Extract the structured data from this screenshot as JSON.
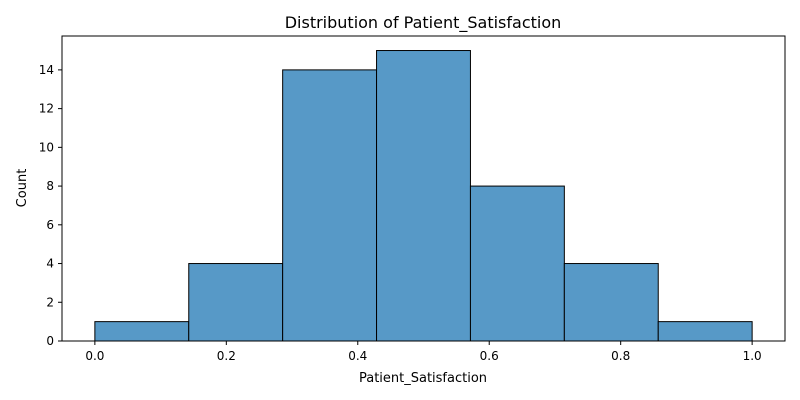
{
  "chart_data": {
    "type": "bar",
    "title": "Distribution of Patient_Satisfaction",
    "xlabel": "Patient_Satisfaction",
    "ylabel": "Count",
    "bin_edges": [
      0.0,
      0.142857,
      0.285714,
      0.428571,
      0.571429,
      0.714286,
      0.857143,
      1.0
    ],
    "values": [
      1,
      4,
      14,
      15,
      8,
      4,
      1
    ],
    "xlim": [
      -0.05,
      1.05
    ],
    "ylim": [
      0,
      15.75
    ],
    "xticks": [
      0.0,
      0.2,
      0.4,
      0.6,
      0.8,
      1.0
    ],
    "xtick_labels": [
      "0.0",
      "0.2",
      "0.4",
      "0.6",
      "0.8",
      "1.0"
    ],
    "yticks": [
      0,
      2,
      4,
      6,
      8,
      10,
      12,
      14
    ],
    "ytick_labels": [
      "0",
      "2",
      "4",
      "6",
      "8",
      "10",
      "12",
      "14"
    ],
    "bar_color": "#5799c7",
    "grid": false,
    "legend": "none"
  }
}
